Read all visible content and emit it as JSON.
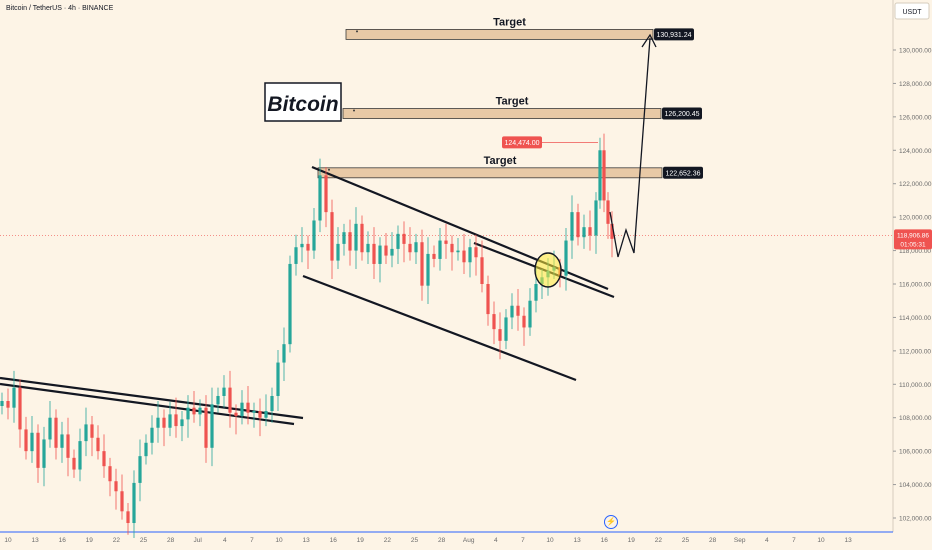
{
  "header": {
    "symbol_line": "Bitcoin / TetherUS · 4h · BINANCE"
  },
  "price_axis": {
    "currency": "USDT",
    "ticks": [
      {
        "label": "130,000.00",
        "value": 130000
      },
      {
        "label": "128,000.00",
        "value": 128000
      },
      {
        "label": "126,000.00",
        "value": 126000
      },
      {
        "label": "124,000.00",
        "value": 124000
      },
      {
        "label": "122,000.00",
        "value": 122000
      },
      {
        "label": "120,000.00",
        "value": 120000
      },
      {
        "label": "118,000.00",
        "value": 118000
      },
      {
        "label": "116,000.00",
        "value": 116000
      },
      {
        "label": "114,000.00",
        "value": 114000
      },
      {
        "label": "112,000.00",
        "value": 112000
      },
      {
        "label": "110,000.00",
        "value": 110000
      },
      {
        "label": "108,000.00",
        "value": 108000
      },
      {
        "label": "106,000.00",
        "value": 106000
      },
      {
        "label": "104,000.00",
        "value": 104000
      },
      {
        "label": "102,000.00",
        "value": 102000
      }
    ],
    "current_price": "118,906.86",
    "countdown": "01:05:31"
  },
  "time_axis": {
    "ticks": [
      "10",
      "13",
      "16",
      "19",
      "22",
      "25",
      "28",
      "Jul",
      "4",
      "7",
      "10",
      "13",
      "16",
      "19",
      "22",
      "25",
      "28",
      "Aug",
      "4",
      "7",
      "10",
      "13",
      "16",
      "19",
      "22",
      "25",
      "28",
      "Sep",
      "4",
      "7",
      "10",
      "13"
    ]
  },
  "annotations": {
    "brand": "Bitcoin",
    "targets": [
      {
        "label": "Target",
        "price": "130,931.24"
      },
      {
        "label": "Target",
        "price": "126,200.45"
      },
      {
        "label": "Target",
        "price": "122,652.36"
      }
    ],
    "high_label": "124,474.00"
  },
  "colors": {
    "background": "#fdf4e6",
    "up_candle": "#26a69a",
    "down_candle": "#ef5350",
    "price_marker": "#ef5350",
    "target_zone_fill": "#e8c9a6",
    "target_label_bg": "#131722",
    "axis_text": "#6b6b6b",
    "time_axis_line": "#2962ff"
  },
  "chart_data": {
    "type": "candlestick",
    "title": "Bitcoin / TetherUS · 4h · BINANCE",
    "ylim": [
      101000,
      133000
    ],
    "x_range": [
      "10",
      "13"
    ],
    "series": [
      {
        "name": "",
        "values_close_approx": [
          [
            0,
            109000
          ],
          [
            6,
            108600
          ],
          [
            12,
            109800
          ],
          [
            18,
            107300
          ],
          [
            24,
            106000
          ],
          [
            30,
            107100
          ],
          [
            36,
            105000
          ],
          [
            42,
            106700
          ],
          [
            48,
            108000
          ],
          [
            54,
            106200
          ],
          [
            60,
            107000
          ],
          [
            66,
            105600
          ],
          [
            72,
            104900
          ],
          [
            78,
            106600
          ],
          [
            84,
            107600
          ],
          [
            90,
            106800
          ],
          [
            96,
            106000
          ],
          [
            102,
            105100
          ],
          [
            108,
            104200
          ],
          [
            114,
            103600
          ],
          [
            120,
            102400
          ],
          [
            126,
            101700
          ],
          [
            132,
            104100
          ],
          [
            138,
            105700
          ],
          [
            144,
            106500
          ],
          [
            150,
            107400
          ],
          [
            156,
            108000
          ],
          [
            162,
            107400
          ],
          [
            168,
            108200
          ],
          [
            174,
            107500
          ],
          [
            180,
            107900
          ],
          [
            186,
            108600
          ],
          [
            192,
            108200
          ],
          [
            198,
            108600
          ],
          [
            204,
            106200
          ],
          [
            210,
            108800
          ],
          [
            216,
            109300
          ],
          [
            222,
            109800
          ],
          [
            228,
            108300
          ],
          [
            234,
            108100
          ],
          [
            240,
            108900
          ],
          [
            246,
            108300
          ],
          [
            252,
            108400
          ],
          [
            258,
            108000
          ],
          [
            264,
            108400
          ],
          [
            270,
            109300
          ],
          [
            276,
            111300
          ],
          [
            282,
            112400
          ],
          [
            288,
            117200
          ],
          [
            294,
            118200
          ],
          [
            300,
            118400
          ],
          [
            306,
            118000
          ],
          [
            312,
            119800
          ],
          [
            318,
            122500
          ],
          [
            324,
            120300
          ],
          [
            330,
            117400
          ],
          [
            336,
            118400
          ],
          [
            342,
            119100
          ],
          [
            348,
            118000
          ],
          [
            354,
            119600
          ],
          [
            360,
            117900
          ],
          [
            366,
            118400
          ],
          [
            372,
            117200
          ],
          [
            378,
            118300
          ],
          [
            384,
            117700
          ],
          [
            390,
            118100
          ],
          [
            396,
            119000
          ],
          [
            402,
            118400
          ],
          [
            408,
            117900
          ],
          [
            414,
            118500
          ],
          [
            420,
            115900
          ],
          [
            426,
            117800
          ],
          [
            432,
            117500
          ],
          [
            438,
            118600
          ],
          [
            444,
            118400
          ],
          [
            450,
            117900
          ],
          [
            456,
            118000
          ],
          [
            462,
            117300
          ],
          [
            468,
            118200
          ],
          [
            474,
            117600
          ],
          [
            480,
            116000
          ],
          [
            486,
            114200
          ],
          [
            492,
            113300
          ],
          [
            498,
            112600
          ],
          [
            504,
            114000
          ],
          [
            510,
            114700
          ],
          [
            516,
            114100
          ],
          [
            522,
            113400
          ],
          [
            528,
            115000
          ],
          [
            534,
            116000
          ],
          [
            540,
            116400
          ],
          [
            546,
            116800
          ],
          [
            552,
            117000
          ],
          [
            558,
            116500
          ],
          [
            564,
            118600
          ],
          [
            570,
            120300
          ],
          [
            576,
            118800
          ],
          [
            582,
            119400
          ],
          [
            588,
            118900
          ],
          [
            594,
            121000
          ],
          [
            598,
            124000
          ],
          [
            602,
            121000
          ],
          [
            606,
            119600
          ],
          [
            610,
            118700
          ]
        ]
      }
    ],
    "horizontal_levels": [
      130931.24,
      126200.45,
      122652.36,
      124474.0
    ],
    "current_price": 118906.86
  }
}
